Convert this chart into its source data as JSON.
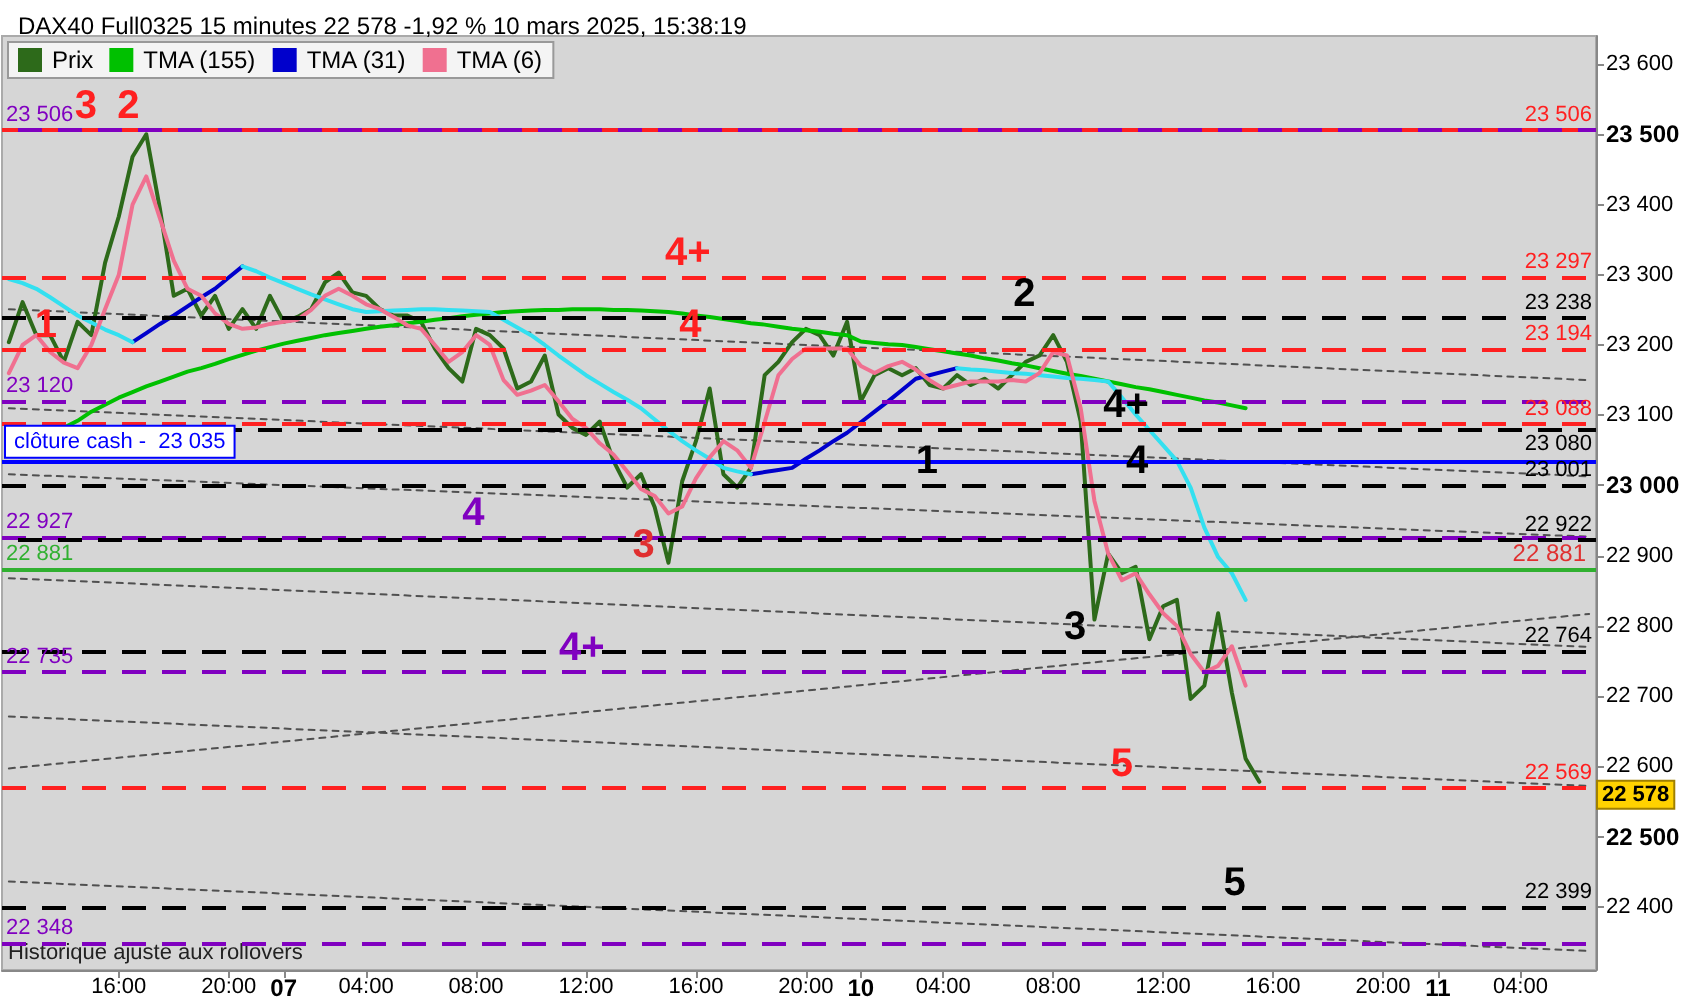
{
  "chart_data": {
    "type": "line",
    "title": "DAX40 Full0325 15 minutes 22 578 -1,92 % 10 mars 2025, 15:38:19",
    "categories": [
      null,
      null,
      null,
      null,
      null,
      null,
      null,
      null,
      "16:00",
      null,
      null,
      null,
      null,
      null,
      null,
      null,
      "20:00",
      null,
      null,
      null,
      "07",
      null,
      null,
      null,
      null,
      null,
      "04:00",
      null,
      null,
      null,
      null,
      null,
      null,
      null,
      "08:00",
      null,
      null,
      null,
      null,
      null,
      null,
      null,
      "12:00",
      null,
      null,
      null,
      null,
      null,
      null,
      null,
      "16:00",
      null,
      null,
      null,
      null,
      null,
      null,
      null,
      "20:00",
      null,
      null,
      null,
      "10",
      null,
      null,
      null,
      null,
      null,
      "04:00",
      null,
      null,
      null,
      null,
      null,
      null,
      null,
      "08:00",
      null,
      null,
      null,
      null,
      null,
      null,
      null,
      "12:00",
      null,
      null,
      null,
      null,
      null,
      null,
      null,
      "16:00",
      null,
      null,
      null,
      null,
      null,
      null,
      null,
      "20:00",
      null,
      null,
      null,
      "11",
      null,
      null,
      null,
      null,
      null,
      "04:00",
      null,
      null,
      null,
      null,
      null
    ],
    "ylim": [
      22310,
      23640
    ],
    "yticks": [
      {
        "value": 22400,
        "label": "22 400"
      },
      {
        "value": 22500,
        "label": "22 500"
      },
      {
        "value": 22600,
        "label": "22 600"
      },
      {
        "value": 22700,
        "label": "22 700"
      },
      {
        "value": 22800,
        "label": "22 800"
      },
      {
        "value": 22900,
        "label": "22 900"
      },
      {
        "value": 23000,
        "label": "23 000"
      },
      {
        "value": 23100,
        "label": "23 100"
      },
      {
        "value": 23200,
        "label": "23 200"
      },
      {
        "value": 23300,
        "label": "23 300"
      },
      {
        "value": 23400,
        "label": "23 400"
      },
      {
        "value": 23500,
        "label": "23 500"
      },
      {
        "value": 23600,
        "label": "23 600"
      }
    ],
    "marker": "none",
    "legend": "top left",
    "series": [
      {
        "name": "Prix",
        "color": "#2d6a1a",
        "values": [
          23204,
          23261,
          23214,
          23214,
          23176,
          23233,
          23214,
          23317,
          23383,
          23468,
          23500,
          23393,
          23270,
          23280,
          23242,
          23270,
          23223,
          23251,
          23223,
          23270,
          23233,
          23240,
          23251,
          23289,
          23303,
          23275,
          23270,
          23251,
          23242,
          23242,
          23233,
          23195,
          23167,
          23148,
          23223,
          23214,
          23195,
          23138,
          23148,
          23185,
          23101,
          23082,
          23072,
          23091,
          23035,
          22997,
          23016,
          22969,
          22890,
          23006,
          23063,
          23138,
          23016,
          22997,
          23025,
          23157,
          23176,
          23204,
          23223,
          23214,
          23185,
          23233,
          23120,
          23157,
          23167,
          23157,
          23167,
          23143,
          23138,
          23157,
          23143,
          23152,
          23138,
          23157,
          23176,
          23185,
          23214,
          23176,
          23091,
          22809,
          22903,
          22875,
          22884,
          22781,
          22828,
          22837,
          22696,
          22715,
          22818,
          22705,
          22611,
          22578,
          null,
          null,
          null,
          null,
          null,
          null,
          null,
          null,
          null,
          null,
          null,
          null,
          null,
          null,
          null,
          null,
          null,
          null,
          null,
          null,
          null,
          null,
          null,
          null
        ]
      },
      {
        "name": "TMA (155)",
        "color": "#00c000",
        "values": [
          null,
          null,
          null,
          null,
          23082,
          23092,
          23105,
          23115,
          23125,
          23133,
          23141,
          23148,
          23155,
          23162,
          23167,
          23173,
          23180,
          23186,
          23192,
          23197,
          23202,
          23206,
          23210,
          23214,
          23217,
          23220,
          23223,
          23226,
          23228,
          23231,
          23233,
          23236,
          23238,
          23241,
          23243,
          23245,
          23247,
          23248,
          23249,
          23250,
          23250,
          23251,
          23251,
          23251,
          23250,
          23250,
          23249,
          23248,
          23247,
          23245,
          23242,
          23240,
          23237,
          23234,
          23231,
          23229,
          23226,
          23223,
          23221,
          23219,
          23216,
          23214,
          23205,
          23203,
          23201,
          23200,
          23197,
          23194,
          23191,
          23188,
          23185,
          23181,
          23178,
          23174,
          23171,
          23167,
          23163,
          23159,
          23156,
          23152,
          23148,
          23144,
          23140,
          23137,
          23133,
          23129,
          23125,
          23121,
          23118,
          23114,
          23110,
          null,
          null,
          null,
          null,
          null,
          null,
          null,
          null,
          null,
          null,
          null,
          null,
          null,
          null,
          null,
          null,
          null,
          null,
          null,
          null,
          null,
          null,
          null,
          null,
          null
        ]
      },
      {
        "name": "TMA (31)",
        "color": "#0000cc",
        "values": [
          null,
          null,
          null,
          null,
          null,
          null,
          null,
          null,
          null,
          23204,
          23217,
          23230,
          23242,
          23255,
          23268,
          23280,
          23296,
          23312,
          null,
          null,
          null,
          null,
          null,
          null,
          null,
          null,
          null,
          null,
          null,
          null,
          null,
          null,
          null,
          null,
          null,
          null,
          null,
          null,
          null,
          null,
          null,
          null,
          null,
          null,
          null,
          null,
          null,
          null,
          null,
          null,
          null,
          null,
          null,
          null,
          23016,
          23019,
          23022,
          23025,
          23038,
          23050,
          23063,
          23075,
          23090,
          23105,
          23120,
          23136,
          23152,
          23157,
          23162,
          23167,
          null,
          null,
          null,
          null,
          null,
          null,
          null,
          null,
          null,
          null,
          null,
          null,
          null,
          null,
          null,
          null,
          null,
          null,
          null,
          null,
          null,
          null,
          null,
          null,
          null,
          null,
          null,
          null,
          null,
          null,
          null,
          null,
          null,
          null,
          null,
          null,
          null,
          null,
          null,
          null,
          null,
          null,
          null,
          null,
          null,
          null
        ]
      },
      {
        "color": "#33e0f0",
        "values": [
          23294,
          23288,
          23280,
          23268,
          23255,
          23242,
          23232,
          23222,
          23214,
          23204,
          null,
          null,
          null,
          null,
          null,
          null,
          null,
          23312,
          23305,
          23296,
          23288,
          23280,
          23272,
          23265,
          23258,
          23251,
          23247,
          23248,
          23249,
          23250,
          23251,
          23251,
          23250,
          23249,
          23248,
          23247,
          23236,
          23225,
          23214,
          23200,
          23185,
          23171,
          23157,
          23145,
          23133,
          23122,
          23110,
          23094,
          23078,
          23063,
          23050,
          23038,
          23025,
          23020,
          23016,
          null,
          null,
          null,
          null,
          null,
          null,
          null,
          null,
          null,
          null,
          null,
          null,
          null,
          null,
          23167,
          23165,
          23164,
          23162,
          23160,
          23159,
          23157,
          23155,
          23153,
          23152,
          23150,
          23148,
          23125,
          23101,
          23079,
          23057,
          23035,
          22997,
          22940,
          22898,
          22875,
          22837,
          null,
          null,
          null,
          null,
          null,
          null,
          null,
          null,
          null,
          null,
          null,
          null,
          null,
          null,
          null,
          null,
          null,
          null,
          null,
          null,
          null,
          null,
          null,
          null,
          null
        ]
      },
      {
        "name": "TMA (6)",
        "color": "#f07090",
        "values": [
          23160,
          23200,
          23214,
          23190,
          23175,
          23167,
          23200,
          23251,
          23300,
          23400,
          23440,
          23380,
          23320,
          23280,
          23270,
          23245,
          23230,
          23223,
          23225,
          23230,
          23233,
          23236,
          23250,
          23270,
          23280,
          23270,
          23258,
          23251,
          23240,
          23228,
          23223,
          23200,
          23176,
          23190,
          23214,
          23200,
          23150,
          23129,
          23135,
          23143,
          23120,
          23095,
          23082,
          23060,
          23044,
          23020,
          22995,
          22985,
          22960,
          22970,
          23010,
          23040,
          23063,
          23050,
          23025,
          23090,
          23157,
          23180,
          23195,
          23195,
          23195,
          23195,
          23170,
          23160,
          23170,
          23176,
          23165,
          23150,
          23138,
          23143,
          23148,
          23148,
          23148,
          23150,
          23148,
          23160,
          23190,
          23185,
          23110,
          22978,
          22903,
          22865,
          22875,
          22845,
          22818,
          22800,
          22760,
          22734,
          22743,
          22771,
          22715,
          null,
          null,
          null,
          null,
          null,
          null,
          null,
          null,
          null,
          null,
          null,
          null,
          null,
          null,
          null,
          null,
          null,
          null,
          null,
          null,
          null,
          null,
          null,
          null,
          null
        ]
      },
      {
        "color": "#505050",
        "line_style": "dotted",
        "values": [
          23251,
          null,
          null,
          null,
          null,
          null,
          null,
          null,
          null,
          null,
          null,
          null,
          null,
          null,
          null,
          null,
          null,
          null,
          null,
          null,
          null,
          null,
          null,
          null,
          null,
          null,
          null,
          null,
          null,
          null,
          null,
          null,
          null,
          null,
          null,
          null,
          null,
          null,
          null,
          null,
          null,
          null,
          null,
          null,
          null,
          null,
          null,
          null,
          null,
          null,
          null,
          null,
          null,
          null,
          null,
          null,
          null,
          null,
          null,
          null,
          null,
          null,
          null,
          null,
          null,
          null,
          null,
          null,
          null,
          null,
          null,
          null,
          null,
          null,
          null,
          null,
          null,
          null,
          null,
          null,
          null,
          null,
          null,
          null,
          null,
          null,
          null,
          null,
          null,
          null,
          null,
          null,
          null,
          null,
          null,
          null,
          null,
          null,
          null,
          null,
          null,
          null,
          null,
          null,
          null,
          null,
          null,
          null,
          null,
          null,
          null,
          null,
          null,
          null,
          null,
          23150
        ]
      },
      {
        "color": "#505050",
        "line_style": "dotted",
        "values": [
          23110,
          null,
          null,
          null,
          null,
          null,
          null,
          null,
          null,
          null,
          null,
          null,
          null,
          null,
          null,
          null,
          null,
          null,
          null,
          null,
          null,
          null,
          null,
          null,
          null,
          null,
          null,
          null,
          null,
          null,
          null,
          null,
          null,
          null,
          null,
          null,
          null,
          null,
          null,
          null,
          null,
          null,
          null,
          null,
          null,
          null,
          null,
          null,
          null,
          null,
          null,
          null,
          null,
          null,
          null,
          null,
          null,
          null,
          null,
          null,
          null,
          null,
          null,
          null,
          null,
          null,
          null,
          null,
          null,
          null,
          null,
          null,
          null,
          null,
          null,
          null,
          null,
          null,
          null,
          null,
          null,
          null,
          null,
          null,
          null,
          null,
          null,
          null,
          null,
          null,
          null,
          null,
          null,
          null,
          null,
          null,
          null,
          null,
          null,
          null,
          null,
          null,
          null,
          null,
          null,
          null,
          null,
          null,
          null,
          null,
          null,
          null,
          null,
          null,
          null,
          23013
        ]
      },
      {
        "color": "#505050",
        "line_style": "dotted",
        "values": [
          23016,
          null,
          null,
          null,
          null,
          null,
          null,
          null,
          null,
          null,
          null,
          null,
          null,
          null,
          null,
          null,
          null,
          null,
          null,
          null,
          null,
          null,
          null,
          null,
          null,
          null,
          null,
          null,
          null,
          null,
          null,
          null,
          null,
          null,
          null,
          null,
          null,
          null,
          null,
          null,
          null,
          null,
          null,
          null,
          null,
          null,
          null,
          null,
          null,
          null,
          null,
          null,
          null,
          null,
          null,
          null,
          null,
          null,
          null,
          null,
          null,
          null,
          null,
          null,
          null,
          null,
          null,
          null,
          null,
          null,
          null,
          null,
          null,
          null,
          null,
          null,
          null,
          null,
          null,
          null,
          null,
          null,
          null,
          null,
          null,
          null,
          null,
          null,
          null,
          null,
          null,
          null,
          null,
          null,
          null,
          null,
          null,
          null,
          null,
          null,
          null,
          null,
          null,
          null,
          null,
          null,
          null,
          null,
          null,
          null,
          null,
          null,
          null,
          null,
          null,
          22927
        ]
      },
      {
        "color": "#505050",
        "line_style": "dotted",
        "values": [
          22868,
          null,
          null,
          null,
          null,
          null,
          null,
          null,
          null,
          null,
          null,
          null,
          null,
          null,
          null,
          null,
          null,
          null,
          null,
          null,
          null,
          null,
          null,
          null,
          null,
          null,
          null,
          null,
          null,
          null,
          null,
          null,
          null,
          null,
          null,
          null,
          null,
          null,
          null,
          null,
          null,
          null,
          null,
          null,
          null,
          null,
          null,
          null,
          null,
          null,
          null,
          null,
          null,
          null,
          null,
          null,
          null,
          null,
          null,
          null,
          null,
          null,
          null,
          null,
          null,
          null,
          null,
          null,
          null,
          null,
          null,
          null,
          null,
          null,
          null,
          null,
          null,
          null,
          null,
          null,
          null,
          null,
          null,
          null,
          null,
          null,
          null,
          null,
          null,
          null,
          null,
          null,
          null,
          null,
          null,
          null,
          null,
          null,
          null,
          null,
          null,
          null,
          null,
          null,
          null,
          null,
          null,
          null,
          null,
          null,
          null,
          null,
          null,
          null,
          null,
          22770
        ]
      },
      {
        "color": "#505050",
        "line_style": "dotted",
        "values": [
          22671,
          null,
          null,
          null,
          null,
          null,
          null,
          null,
          null,
          null,
          null,
          null,
          null,
          null,
          null,
          null,
          null,
          null,
          null,
          null,
          null,
          null,
          null,
          null,
          null,
          null,
          null,
          null,
          null,
          null,
          null,
          null,
          null,
          null,
          null,
          null,
          null,
          null,
          null,
          null,
          null,
          null,
          null,
          null,
          null,
          null,
          null,
          null,
          null,
          null,
          null,
          null,
          null,
          null,
          null,
          null,
          null,
          null,
          null,
          null,
          null,
          null,
          null,
          null,
          null,
          null,
          null,
          null,
          null,
          null,
          null,
          null,
          null,
          null,
          null,
          null,
          null,
          null,
          null,
          null,
          null,
          null,
          null,
          null,
          null,
          null,
          null,
          null,
          null,
          null,
          null,
          null,
          null,
          null,
          null,
          null,
          null,
          null,
          null,
          null,
          null,
          null,
          null,
          null,
          null,
          null,
          null,
          null,
          null,
          null,
          null,
          null,
          null,
          null,
          null,
          22572
        ]
      },
      {
        "color": "#505050",
        "line_style": "dotted",
        "values": [
          22597,
          null,
          null,
          null,
          null,
          null,
          null,
          null,
          null,
          null,
          null,
          null,
          null,
          null,
          null,
          null,
          null,
          null,
          null,
          null,
          null,
          null,
          null,
          null,
          null,
          null,
          null,
          null,
          null,
          null,
          null,
          null,
          null,
          null,
          null,
          null,
          null,
          null,
          null,
          null,
          null,
          null,
          null,
          null,
          null,
          null,
          null,
          null,
          null,
          null,
          null,
          null,
          null,
          null,
          null,
          null,
          null,
          null,
          null,
          null,
          null,
          null,
          null,
          null,
          null,
          null,
          null,
          null,
          null,
          null,
          null,
          null,
          null,
          null,
          null,
          null,
          null,
          null,
          null,
          null,
          null,
          null,
          null,
          null,
          null,
          null,
          null,
          null,
          null,
          null,
          null,
          null,
          null,
          null,
          null,
          null,
          null,
          null,
          null,
          null,
          null,
          null,
          null,
          null,
          null,
          null,
          null,
          null,
          null,
          null,
          null,
          null,
          null,
          null,
          null,
          22817
        ]
      },
      {
        "color": "#505050",
        "line_style": "dotted",
        "values": [
          22436,
          null,
          null,
          null,
          null,
          null,
          null,
          null,
          null,
          null,
          null,
          null,
          null,
          null,
          null,
          null,
          null,
          null,
          null,
          null,
          null,
          null,
          null,
          null,
          null,
          null,
          null,
          null,
          null,
          null,
          null,
          null,
          null,
          null,
          null,
          null,
          null,
          null,
          null,
          null,
          null,
          null,
          null,
          null,
          null,
          null,
          null,
          null,
          null,
          null,
          null,
          null,
          null,
          null,
          null,
          null,
          null,
          null,
          null,
          null,
          null,
          null,
          null,
          null,
          null,
          null,
          null,
          null,
          null,
          null,
          null,
          null,
          null,
          null,
          null,
          null,
          null,
          null,
          null,
          null,
          null,
          null,
          null,
          null,
          null,
          null,
          null,
          null,
          null,
          null,
          null,
          null,
          null,
          null,
          null,
          null,
          null,
          null,
          null,
          null,
          null,
          null,
          null,
          null,
          null,
          null,
          null,
          null,
          null,
          null,
          null,
          null,
          null,
          null,
          null,
          22337
        ]
      }
    ],
    "ref_lines": [
      {
        "axis": "y",
        "value": 23506,
        "label": "23 506",
        "color": "#ff2020",
        "line_style": "dashed"
      },
      {
        "axis": "y",
        "value": 23506,
        "label": "23 506",
        "color": "#8000c0",
        "line_style": "dashed"
      },
      {
        "axis": "y",
        "value": 23297,
        "label": "23 297",
        "color": "#ff2020",
        "line_style": "dashed"
      },
      {
        "axis": "y",
        "value": 23238,
        "label": "23 238",
        "color": "#000000",
        "line_style": "dashed"
      },
      {
        "axis": "y",
        "value": 23194,
        "label": "23 194",
        "color": "#ff2020",
        "line_style": "dashed"
      },
      {
        "axis": "y",
        "value": 23120,
        "label": "23 120",
        "color": "#8000c0",
        "line_style": "dashed"
      },
      {
        "axis": "y",
        "value": 23088,
        "label": "23 088",
        "color": "#ff2020",
        "line_style": "dashed"
      },
      {
        "axis": "y",
        "value": 23080,
        "label": "23 080",
        "color": "#000000",
        "line_style": "dashed"
      },
      {
        "axis": "y",
        "value": 23035,
        "label": "clôture cash -  23 035",
        "color": "#0000ff",
        "line_style": "solid"
      },
      {
        "axis": "y",
        "value": 23001,
        "label": "23 001",
        "color": "#000000",
        "line_style": "dashed"
      },
      {
        "axis": "y",
        "value": 22927,
        "label": "22 927",
        "color": "#8000c0",
        "line_style": "dashed"
      },
      {
        "axis": "y",
        "value": 22922,
        "label": "22 922",
        "color": "#000000",
        "line_style": "dashed"
      },
      {
        "axis": "y",
        "value": 22881,
        "label": "22 881",
        "color": "#30b030",
        "line_style": "solid"
      },
      {
        "axis": "y",
        "value": 22764,
        "label": "22 764",
        "color": "#000000",
        "line_style": "dashed"
      },
      {
        "axis": "y",
        "value": 22735,
        "label": "22 735",
        "color": "#8000c0",
        "line_style": "dashed"
      },
      {
        "axis": "y",
        "value": 22569,
        "label": "22 569",
        "color": "#ff2020",
        "line_style": "dashed"
      },
      {
        "axis": "y",
        "value": 22399,
        "label": "22 399",
        "color": "#000000",
        "line_style": "dashed"
      },
      {
        "axis": "y",
        "value": 22348,
        "label": "22 348",
        "color": "#8000c0",
        "line_style": "dashed"
      }
    ],
    "annotations": [
      {
        "text": "3",
        "y": 23506
      },
      {
        "text": "2",
        "y": 23506
      },
      {
        "text": "1",
        "y": 23194
      },
      {
        "text": "4+",
        "y": 23297
      },
      {
        "text": "4",
        "y": 23194
      },
      {
        "text": "4",
        "y": 22927
      },
      {
        "text": "3",
        "y": 22881
      },
      {
        "text": "4+",
        "y": 22735
      },
      {
        "text": "2",
        "y": 23238
      },
      {
        "text": "4+",
        "y": 23080
      },
      {
        "text": "1",
        "y": 23001
      },
      {
        "text": "4",
        "y": 23001
      },
      {
        "text": "3",
        "y": 22764
      },
      {
        "text": "5",
        "y": 22569
      },
      {
        "text": "5",
        "y": 22399
      },
      {
        "text": "22 881",
        "y": 22881
      },
      "22 578",
      "Historique ajusté aux rollovers"
    ]
  }
}
